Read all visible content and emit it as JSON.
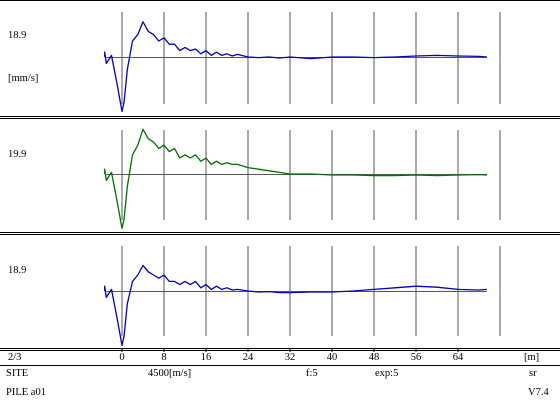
{
  "pile_label": "PILE a01",
  "site_label": "SITE",
  "trace_index": "2/3",
  "wave_speed": "4500[m/s]",
  "filter": "f:5",
  "exp": "exp:5",
  "mode": "sr",
  "version": "V7.4",
  "x_unit": "[m]",
  "chart_data": [
    {
      "type": "line",
      "panel": "trace-1",
      "y_scale_label": "18.9",
      "y_unit": "[mm/s]",
      "x_ticks": [
        0,
        8,
        16,
        24,
        32,
        40,
        48,
        56,
        64
      ],
      "xlim": [
        -24,
        72
      ],
      "ylim": [
        -18.9,
        18.9
      ],
      "grid": "vertical lines every 4 m, baseline at 0",
      "color": "#0000c0",
      "series": [
        {
          "x": [
            -24,
            -12,
            -6,
            -3,
            -2,
            -1,
            0,
            0.4,
            1,
            2,
            3,
            4,
            5,
            6,
            7,
            8,
            9,
            10,
            11,
            12,
            13,
            14,
            15,
            16,
            17,
            18,
            19,
            20,
            21,
            22,
            24,
            26,
            28,
            30,
            32,
            36,
            40,
            44,
            48,
            52,
            56,
            60,
            64,
            68,
            72
          ],
          "y": [
            0,
            0.3,
            1.5,
            -2,
            0.5,
            -8,
            -17,
            -14,
            -4,
            5,
            7,
            11,
            8,
            7,
            5,
            6,
            4,
            4,
            2,
            3,
            2,
            2.5,
            1,
            2,
            0.5,
            1.5,
            0.5,
            1,
            0.3,
            0.8,
            0,
            -0.2,
            0,
            -0.3,
            0,
            -0.5,
            0,
            0,
            -0.2,
            0,
            0.3,
            0.5,
            0.3,
            0.2,
            0
          ]
        }
      ]
    },
    {
      "type": "line",
      "panel": "trace-2",
      "y_scale_label": "19.9",
      "x_ticks": [
        0,
        8,
        16,
        24,
        32,
        40,
        48,
        56,
        64
      ],
      "xlim": [
        -24,
        72
      ],
      "ylim": [
        -19.9,
        19.9
      ],
      "grid": "vertical lines every 4 m, baseline at 0",
      "color": "#007000",
      "series": [
        {
          "x": [
            -24,
            -12,
            -6,
            -3,
            -2,
            -1,
            0,
            0.4,
            1,
            2,
            3,
            4,
            5,
            6,
            7,
            8,
            9,
            10,
            11,
            12,
            13,
            14,
            15,
            16,
            17,
            18,
            19,
            20,
            21,
            22,
            24,
            26,
            28,
            30,
            32,
            36,
            40,
            44,
            48,
            52,
            56,
            60,
            64,
            68,
            72
          ],
          "y": [
            0,
            0.3,
            1.5,
            -2,
            0.5,
            -8,
            -17,
            -14,
            -4,
            6,
            9,
            14,
            11,
            10,
            8,
            9,
            7,
            8,
            5,
            6,
            5,
            6,
            4,
            5,
            3,
            4,
            3,
            3.5,
            3,
            3,
            2,
            1.5,
            1,
            0.5,
            0,
            0,
            -0.3,
            -0.3,
            -0.5,
            -0.5,
            -0.3,
            -0.5,
            -0.3,
            -0.2,
            -0.3
          ]
        }
      ]
    },
    {
      "type": "line",
      "panel": "trace-3",
      "y_scale_label": "18.9",
      "x_ticks": [
        0,
        8,
        16,
        24,
        32,
        40,
        48,
        56,
        64
      ],
      "xlim": [
        -24,
        72
      ],
      "ylim": [
        -18.9,
        18.9
      ],
      "grid": "vertical lines every 4 m, baseline at 0",
      "color": "#0000c0",
      "series": [
        {
          "x": [
            -24,
            -12,
            -6,
            -3,
            -2,
            -1,
            0,
            0.4,
            1,
            2,
            3,
            4,
            5,
            6,
            7,
            8,
            9,
            10,
            11,
            12,
            13,
            14,
            15,
            16,
            17,
            18,
            19,
            20,
            21,
            22,
            24,
            26,
            28,
            30,
            32,
            36,
            40,
            44,
            48,
            52,
            56,
            60,
            64,
            68,
            72
          ],
          "y": [
            0,
            0.3,
            1.5,
            -2,
            0.5,
            -8,
            -17,
            -14,
            -4,
            3,
            5,
            8,
            6,
            5,
            4,
            5,
            3,
            3,
            2,
            3,
            2,
            3,
            1,
            2,
            0.5,
            1.5,
            0.5,
            1,
            0.3,
            0.5,
            0,
            -0.3,
            -0.2,
            -0.5,
            -0.5,
            -0.3,
            -0.3,
            0,
            0.5,
            1,
            1.5,
            1.2,
            0.5,
            0.3,
            0.5
          ]
        }
      ]
    }
  ]
}
